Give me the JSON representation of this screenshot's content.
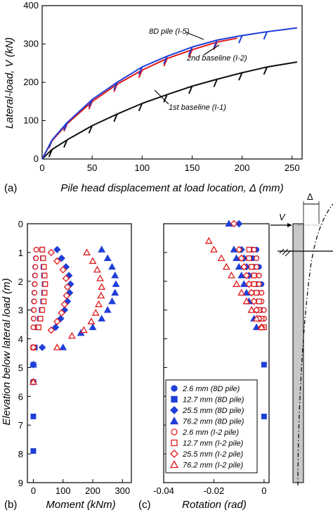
{
  "panels": {
    "a": "(a)",
    "b": "(b)",
    "c": "(c)"
  },
  "chart_data": [
    {
      "id": "a",
      "type": "line",
      "xlabel": "Pile head displacement at load location, Δ (mm)",
      "ylabel": "Lateral-load, V (kN)",
      "xlim": [
        0,
        260
      ],
      "ylim": [
        0,
        400
      ],
      "xticks": [
        "0",
        "50",
        "100",
        "150",
        "200",
        "250"
      ],
      "yticks": [
        "0",
        "100",
        "200",
        "300",
        "400"
      ],
      "grid": false,
      "series": [
        {
          "name": "8D pile (I-5)",
          "color": "#1f3fd8",
          "x": [
            0,
            10,
            25,
            50,
            75,
            100,
            125,
            150,
            175,
            200,
            225,
            255
          ],
          "y": [
            0,
            50,
            95,
            155,
            200,
            240,
            268,
            292,
            310,
            322,
            332,
            342
          ]
        },
        {
          "name": "2nd baseline (I-2)",
          "color": "#e01818",
          "x": [
            0,
            10,
            25,
            50,
            75,
            100,
            125,
            150,
            175,
            195
          ],
          "y": [
            0,
            48,
            92,
            150,
            195,
            232,
            262,
            285,
            305,
            315
          ]
        },
        {
          "name": "1st baseline (I-1)",
          "color": "#111111",
          "x": [
            0,
            10,
            25,
            50,
            75,
            100,
            125,
            150,
            175,
            200,
            225,
            255
          ],
          "y": [
            0,
            25,
            50,
            87,
            117,
            145,
            168,
            190,
            208,
            225,
            240,
            253
          ]
        }
      ],
      "annotations": [
        "8D pile (I-5)",
        "2nd baseline (I-2)",
        "1st baseline (I-1)"
      ]
    },
    {
      "id": "b",
      "type": "scatter",
      "xlabel": "Moment (kNm)",
      "ylabel": "Elevation below lateral load (m)",
      "xlim": [
        -20,
        330
      ],
      "ylim": [
        9,
        0
      ],
      "xticks": [
        "0",
        "100",
        "200",
        "300"
      ],
      "yticks": [
        "0",
        "1",
        "2",
        "3",
        "4",
        "5",
        "6",
        "7",
        "8",
        "9"
      ],
      "series": [
        {
          "name": "2.6 mm (8D pile)",
          "marker": "circle-filled",
          "color": "#1f3fd8",
          "points": [
            [
              10,
              0.9
            ],
            [
              8,
              1.2
            ],
            [
              6,
              1.5
            ],
            [
              5,
              1.8
            ],
            [
              4,
              2.1
            ],
            [
              3,
              2.4
            ],
            [
              2,
              2.7
            ],
            [
              1,
              3.0
            ],
            [
              1,
              3.3
            ],
            [
              0,
              3.6
            ]
          ]
        },
        {
          "name": "12.7 mm (8D pile)",
          "marker": "square-filled",
          "color": "#1f3fd8",
          "points": [
            [
              30,
              0.9
            ],
            [
              32,
              1.2
            ],
            [
              34,
              1.5
            ],
            [
              36,
              1.8
            ],
            [
              38,
              2.1
            ],
            [
              36,
              2.4
            ],
            [
              33,
              2.7
            ],
            [
              28,
              3.0
            ],
            [
              22,
              3.3
            ],
            [
              15,
              3.6
            ],
            [
              5,
              4.3
            ],
            [
              0,
              4.9
            ],
            [
              0,
              5.5
            ],
            [
              0,
              6.7
            ],
            [
              0,
              7.9
            ]
          ]
        },
        {
          "name": "25.5 mm (8D pile)",
          "marker": "diamond-filled",
          "color": "#1f3fd8",
          "points": [
            [
              80,
              0.9
            ],
            [
              95,
              1.2
            ],
            [
              110,
              1.5
            ],
            [
              120,
              1.8
            ],
            [
              125,
              2.1
            ],
            [
              122,
              2.4
            ],
            [
              115,
              2.7
            ],
            [
              105,
              3.0
            ],
            [
              92,
              3.3
            ],
            [
              75,
              3.6
            ],
            [
              30,
              4.3
            ],
            [
              0,
              4.9
            ],
            [
              0,
              5.5
            ]
          ]
        },
        {
          "name": "76.2 mm (8D pile)",
          "marker": "triangle-filled",
          "color": "#1f3fd8",
          "points": [
            [
              230,
              0.9
            ],
            [
              250,
              1.2
            ],
            [
              265,
              1.5
            ],
            [
              275,
              1.8
            ],
            [
              278,
              2.1
            ],
            [
              275,
              2.4
            ],
            [
              265,
              2.7
            ],
            [
              250,
              3.0
            ],
            [
              230,
              3.3
            ],
            [
              200,
              3.6
            ],
            [
              160,
              3.8
            ],
            [
              100,
              4.3
            ],
            [
              0,
              4.9
            ],
            [
              0,
              5.5
            ]
          ]
        },
        {
          "name": "2.6 mm (I-2 pile)",
          "marker": "circle-open",
          "color": "#e01818",
          "points": [
            [
              10,
              0.9
            ],
            [
              9,
              1.2
            ],
            [
              7,
              1.5
            ],
            [
              6,
              1.8
            ],
            [
              5,
              2.1
            ],
            [
              4,
              2.4
            ],
            [
              3,
              2.7
            ],
            [
              2,
              3.0
            ],
            [
              1,
              3.3
            ],
            [
              0,
              3.6
            ],
            [
              0,
              4.3
            ],
            [
              0,
              5.5
            ]
          ]
        },
        {
          "name": "12.7 mm (I-2 pile)",
          "marker": "square-open",
          "color": "#e01818",
          "points": [
            [
              30,
              0.9
            ],
            [
              33,
              1.2
            ],
            [
              36,
              1.5
            ],
            [
              38,
              1.8
            ],
            [
              40,
              2.1
            ],
            [
              38,
              2.4
            ],
            [
              35,
              2.7
            ],
            [
              30,
              3.0
            ],
            [
              24,
              3.3
            ],
            [
              18,
              3.6
            ],
            [
              0,
              4.3
            ]
          ]
        },
        {
          "name": "25.5 mm (I-2 pile)",
          "marker": "diamond-open",
          "color": "#e01818",
          "points": [
            [
              60,
              1.0
            ],
            [
              80,
              1.3
            ],
            [
              100,
              1.6
            ],
            [
              110,
              1.9
            ],
            [
              115,
              2.2
            ],
            [
              112,
              2.5
            ],
            [
              105,
              2.8
            ],
            [
              95,
              3.1
            ],
            [
              80,
              3.4
            ],
            [
              60,
              3.7
            ],
            [
              0,
              4.3
            ]
          ]
        },
        {
          "name": "76.2 mm (I-2 pile)",
          "marker": "triangle-open",
          "color": "#e01818",
          "points": [
            [
              180,
              1.0
            ],
            [
              200,
              1.3
            ],
            [
              215,
              1.6
            ],
            [
              225,
              1.9
            ],
            [
              230,
              2.2
            ],
            [
              228,
              2.5
            ],
            [
              220,
              2.8
            ],
            [
              210,
              3.1
            ],
            [
              195,
              3.4
            ],
            [
              170,
              3.7
            ],
            [
              130,
              3.9
            ],
            [
              80,
              4.3
            ],
            [
              0,
              5.5
            ]
          ]
        }
      ]
    },
    {
      "id": "c",
      "type": "scatter",
      "xlabel": "Rotation (rad)",
      "xlim": [
        -0.04,
        0.002
      ],
      "ylim": [
        9,
        0
      ],
      "xticks": [
        "-0.04",
        "-0.02",
        "0"
      ],
      "legend": {
        "placement": "bottom-center",
        "entries": [
          "2.6 mm (8D pile)",
          "12.7 mm (8D pile)",
          "25.5 mm (8D pile)",
          "76.2 mm (8D pile)",
          "2.6 mm (I-2 pile)",
          "12.7 mm (I-2 pile)",
          "25.5 mm (I-2 pile)",
          "76.2 mm (I-2 pile)"
        ]
      },
      "series": [
        {
          "name": "2.6 mm (8D pile)",
          "marker": "circle-filled",
          "color": "#1f3fd8",
          "points": [
            [
              -0.003,
              0.9
            ],
            [
              -0.003,
              1.2
            ],
            [
              -0.002,
              1.5
            ],
            [
              -0.002,
              1.8
            ],
            [
              -0.001,
              2.1
            ],
            [
              -0.001,
              2.4
            ],
            [
              -0.001,
              2.7
            ],
            [
              -0.001,
              3.0
            ],
            [
              0.0,
              3.3
            ],
            [
              0.0,
              3.6
            ]
          ]
        },
        {
          "name": "12.7 mm (8D pile)",
          "marker": "square-filled",
          "color": "#1f3fd8",
          "points": [
            [
              -0.005,
              0.9
            ],
            [
              -0.005,
              1.2
            ],
            [
              -0.004,
              1.5
            ],
            [
              -0.004,
              1.8
            ],
            [
              -0.003,
              2.1
            ],
            [
              -0.003,
              2.4
            ],
            [
              -0.002,
              2.7
            ],
            [
              -0.002,
              3.0
            ],
            [
              -0.001,
              3.3
            ],
            [
              0.0,
              4.9
            ],
            [
              0.0,
              6.7
            ]
          ]
        },
        {
          "name": "25.5 mm (8D pile)",
          "marker": "diamond-filled",
          "color": "#1f3fd8",
          "points": [
            [
              -0.01,
              0.0
            ],
            [
              -0.009,
              0.9
            ],
            [
              -0.008,
              1.2
            ],
            [
              -0.007,
              1.5
            ],
            [
              -0.006,
              1.8
            ],
            [
              -0.006,
              2.1
            ],
            [
              -0.005,
              2.4
            ],
            [
              -0.004,
              2.7
            ],
            [
              -0.003,
              3.0
            ],
            [
              -0.002,
              3.3
            ]
          ]
        },
        {
          "name": "76.2 mm (8D pile)",
          "marker": "triangle-filled",
          "color": "#1f3fd8",
          "points": [
            [
              -0.014,
              0.0
            ],
            [
              -0.012,
              0.9
            ],
            [
              -0.011,
              1.2
            ],
            [
              -0.01,
              1.5
            ],
            [
              -0.009,
              1.8
            ],
            [
              -0.008,
              2.1
            ],
            [
              -0.007,
              2.4
            ],
            [
              -0.006,
              2.7
            ],
            [
              -0.005,
              3.0
            ],
            [
              -0.004,
              3.3
            ],
            [
              -0.003,
              3.6
            ]
          ]
        },
        {
          "name": "2.6 mm (I-2 pile)",
          "marker": "circle-open",
          "color": "#e01818",
          "points": [
            [
              -0.004,
              0.9
            ],
            [
              -0.003,
              1.2
            ],
            [
              -0.003,
              1.5
            ],
            [
              -0.002,
              1.8
            ],
            [
              -0.002,
              2.1
            ],
            [
              -0.001,
              2.4
            ],
            [
              -0.001,
              2.7
            ],
            [
              0.0,
              3.0
            ],
            [
              0.0,
              3.3
            ]
          ]
        },
        {
          "name": "12.7 mm (I-2 pile)",
          "marker": "square-open",
          "color": "#e01818",
          "points": [
            [
              -0.006,
              0.9
            ],
            [
              -0.006,
              1.2
            ],
            [
              -0.005,
              1.5
            ],
            [
              -0.004,
              1.8
            ],
            [
              -0.004,
              2.1
            ],
            [
              -0.003,
              2.4
            ],
            [
              -0.002,
              2.7
            ],
            [
              -0.002,
              3.0
            ],
            [
              -0.001,
              3.3
            ],
            [
              0.0,
              3.6
            ]
          ]
        },
        {
          "name": "25.5 mm (I-2 pile)",
          "marker": "diamond-open",
          "color": "#e01818",
          "points": [
            [
              -0.012,
              0.0
            ],
            [
              -0.01,
              0.9
            ],
            [
              -0.009,
              1.2
            ],
            [
              -0.008,
              1.5
            ],
            [
              -0.007,
              1.8
            ],
            [
              -0.006,
              2.1
            ],
            [
              -0.005,
              2.4
            ],
            [
              -0.004,
              2.7
            ],
            [
              -0.003,
              3.0
            ],
            [
              -0.002,
              3.3
            ],
            [
              -0.001,
              3.6
            ]
          ]
        },
        {
          "name": "76.2 mm (I-2 pile)",
          "marker": "triangle-open",
          "color": "#e01818",
          "points": [
            [
              -0.022,
              0.6
            ],
            [
              -0.02,
              0.9
            ],
            [
              -0.017,
              1.2
            ],
            [
              -0.015,
              1.5
            ],
            [
              -0.013,
              1.8
            ],
            [
              -0.011,
              2.1
            ],
            [
              -0.009,
              2.4
            ],
            [
              -0.007,
              2.7
            ],
            [
              -0.005,
              3.0
            ],
            [
              -0.003,
              3.3
            ],
            [
              -0.001,
              3.6
            ]
          ]
        }
      ]
    }
  ],
  "schematic": {
    "load_label": "V",
    "displacement_label": "Δ"
  }
}
